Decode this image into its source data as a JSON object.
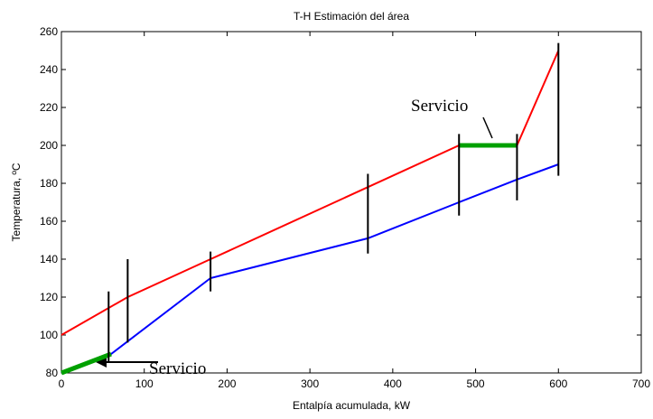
{
  "chart_data": {
    "type": "line",
    "title": "T-H Estimación del área",
    "xlabel": "Entalpía acumulada, kW",
    "ylabel": "Temperatura, ºC",
    "xlim": [
      0,
      700
    ],
    "xticks": [
      0,
      100,
      200,
      300,
      400,
      500,
      600,
      700
    ],
    "ylim": [
      80,
      260
    ],
    "yticks": [
      80,
      100,
      120,
      140,
      160,
      180,
      200,
      220,
      240,
      260
    ],
    "grid": false,
    "series": [
      {
        "color": "#ff0000",
        "x": [
          0,
          80,
          180,
          480,
          550,
          600
        ],
        "values": [
          100,
          120,
          140,
          200,
          200,
          250
        ]
      },
      {
        "color": "#0000ff",
        "x": [
          0,
          60,
          180,
          370,
          480,
          550,
          600
        ],
        "values": [
          80,
          90,
          130,
          151,
          170,
          182,
          190
        ]
      },
      {
        "color": "#00a000",
        "x": [
          0,
          60
        ],
        "values": [
          80,
          90
        ]
      },
      {
        "color": "#00a000",
        "x": [
          480,
          550
        ],
        "values": [
          200,
          200
        ]
      }
    ],
    "intervals": [
      {
        "x": 57,
        "y": [
          86,
          123
        ]
      },
      {
        "x": 80,
        "y": [
          96,
          140
        ]
      },
      {
        "x": 180,
        "y": [
          123,
          144
        ]
      },
      {
        "x": 370,
        "y": [
          143,
          185
        ]
      },
      {
        "x": 480,
        "y": [
          163,
          206
        ]
      },
      {
        "x": 550,
        "y": [
          171,
          206
        ]
      },
      {
        "x": 600,
        "y": [
          184,
          254
        ]
      }
    ],
    "annotations": [
      "Servicio",
      "Servicio"
    ]
  }
}
